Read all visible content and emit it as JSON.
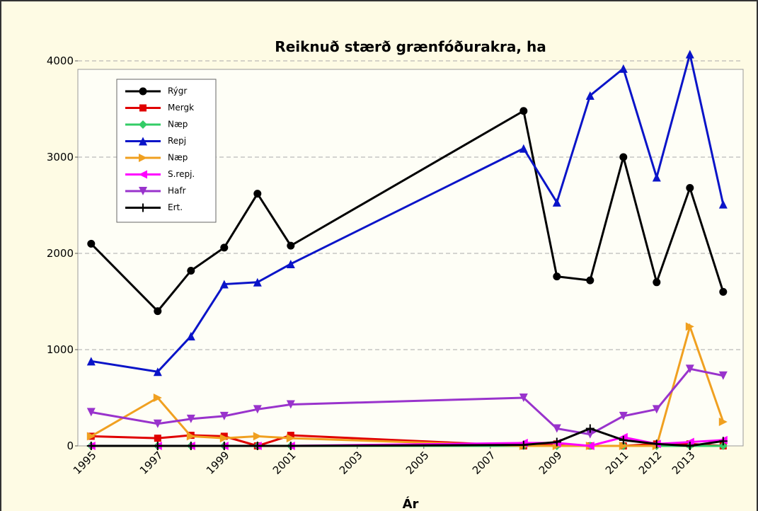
{
  "chart_data": {
    "type": "line",
    "title": "Reiknuð stærð grænfóðurakra, ha",
    "x_label": "Ár",
    "x": [
      1995,
      1997,
      1998,
      1999,
      2000,
      2001,
      2008,
      2009,
      2010,
      2011,
      2012,
      2013,
      2014
    ],
    "series": [
      {
        "name": "Rýgr",
        "color": "#000000",
        "marker": "circle",
        "values": [
          2100,
          1400,
          1820,
          2060,
          2620,
          2080,
          3480,
          1760,
          1720,
          3000,
          1700,
          2680,
          1600
        ]
      },
      {
        "name": "Mergk",
        "color": "#e00000",
        "marker": "square",
        "values": [
          100,
          80,
          110,
          100,
          0,
          110,
          0,
          20,
          0,
          0,
          20,
          20,
          0
        ]
      },
      {
        "name": "Næp",
        "color": "#33cc66",
        "marker": "diamond",
        "values": [
          0,
          0,
          0,
          0,
          0,
          0,
          0,
          0,
          0,
          0,
          0,
          0,
          0
        ]
      },
      {
        "name": "Repj",
        "color": "#0a14c8",
        "marker": "triangle-up",
        "values": [
          880,
          770,
          1140,
          1680,
          1700,
          1890,
          3090,
          2530,
          3640,
          3920,
          2790,
          4070,
          2510
        ]
      },
      {
        "name": "Næp",
        "color": "#f0a020",
        "marker": "triangle-right",
        "values": [
          100,
          500,
          100,
          80,
          100,
          80,
          0,
          0,
          0,
          0,
          0,
          1240,
          250
        ]
      },
      {
        "name": "S.repj.",
        "color": "#ff00ff",
        "marker": "triangle-left",
        "values": [
          0,
          0,
          0,
          0,
          0,
          0,
          30,
          30,
          0,
          90,
          20,
          40,
          60
        ]
      },
      {
        "name": "Hafr",
        "color": "#9933cc",
        "marker": "triangle-down",
        "values": [
          350,
          230,
          280,
          310,
          380,
          430,
          500,
          180,
          120,
          310,
          380,
          800,
          730
        ]
      },
      {
        "name": "Ert.",
        "color": "#000000",
        "marker": "plus",
        "values": [
          0,
          0,
          0,
          0,
          0,
          0,
          10,
          40,
          180,
          60,
          20,
          0,
          50
        ]
      }
    ],
    "xlim": [
      1994.6,
      2014.6
    ],
    "xticks": [
      1995,
      1997,
      1999,
      2001,
      2003,
      2005,
      2007,
      2009,
      2011,
      2012,
      2013
    ],
    "ylim": [
      0,
      4000
    ],
    "yticks": [
      0,
      1000,
      2000,
      3000,
      4000
    ],
    "grid": true,
    "legend": "upper left"
  }
}
